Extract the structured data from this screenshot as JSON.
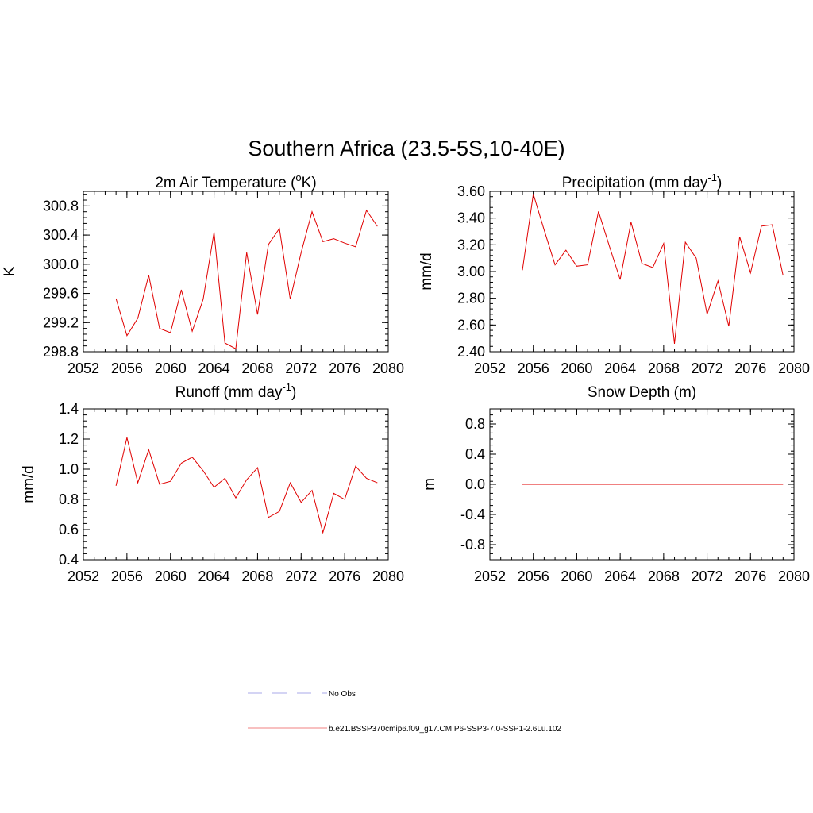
{
  "figure": {
    "title": "Southern Africa (23.5-5S,10-40E)"
  },
  "colors": {
    "model_line": "#e00000",
    "obs_line": "#a9a9e8",
    "legend_model_line": "#f08080"
  },
  "legend": {
    "entries": [
      {
        "label": "No Obs",
        "style": "dashed",
        "color": "#a9a9e8"
      },
      {
        "label": "b.e21.BSSP370cmip6.f09_g17.CMIP6-SSP3-7.0-SSP1-2.6Lu.102",
        "style": "solid",
        "color": "#f08080"
      }
    ]
  },
  "chart_data": [
    {
      "type": "line",
      "title_pre": "2m Air Temperature (",
      "title_sup": "o",
      "title_post": "K)",
      "ylabel": "K",
      "xlim": [
        2052,
        2080
      ],
      "ylim": [
        298.8,
        301.0
      ],
      "xticks": [
        2052,
        2056,
        2060,
        2064,
        2068,
        2072,
        2076,
        2080
      ],
      "xtick_labels": [
        "2052",
        "2056",
        "2060",
        "2064",
        "2068",
        "2072",
        "2076",
        "2080"
      ],
      "yticks": [
        298.8,
        299.2,
        299.6,
        300.0,
        300.4,
        300.8
      ],
      "ytick_labels": [
        "298.8",
        "299.2",
        "299.6",
        "300.0",
        "300.4",
        "300.8"
      ],
      "series": [
        {
          "x": [
            2055,
            2056,
            2057,
            2058,
            2059,
            2060,
            2061,
            2062,
            2063,
            2064,
            2065,
            2066,
            2067,
            2068,
            2069,
            2070,
            2071,
            2072,
            2073,
            2074,
            2075,
            2076,
            2077,
            2078,
            2079
          ],
          "values": [
            299.53,
            299.02,
            299.26,
            299.85,
            299.12,
            299.06,
            299.65,
            299.08,
            299.52,
            300.44,
            298.92,
            298.84,
            300.16,
            299.31,
            300.27,
            300.49,
            299.52,
            300.16,
            300.72,
            300.31,
            300.35,
            300.29,
            300.24,
            300.74,
            300.52
          ]
        }
      ]
    },
    {
      "type": "line",
      "title_pre": "Precipitation (mm day",
      "title_sup": "-1",
      "title_post": ")",
      "ylabel": "mm/d",
      "xlim": [
        2052,
        2080
      ],
      "ylim": [
        2.4,
        3.6
      ],
      "xticks": [
        2052,
        2056,
        2060,
        2064,
        2068,
        2072,
        2076,
        2080
      ],
      "xtick_labels": [
        "2052",
        "2056",
        "2060",
        "2064",
        "2068",
        "2072",
        "2076",
        "2080"
      ],
      "yticks": [
        2.4,
        2.6,
        2.8,
        3.0,
        3.2,
        3.4,
        3.6
      ],
      "ytick_labels": [
        "2.40",
        "2.60",
        "2.80",
        "3.00",
        "3.20",
        "3.40",
        "3.60"
      ],
      "series": [
        {
          "x": [
            2055,
            2056,
            2057,
            2058,
            2059,
            2060,
            2061,
            2062,
            2063,
            2064,
            2065,
            2066,
            2067,
            2068,
            2069,
            2070,
            2071,
            2072,
            2073,
            2074,
            2075,
            2076,
            2077,
            2078,
            2079
          ],
          "values": [
            3.01,
            3.58,
            3.31,
            3.05,
            3.16,
            3.04,
            3.05,
            3.45,
            3.19,
            2.94,
            3.37,
            3.06,
            3.03,
            3.21,
            2.46,
            3.22,
            3.1,
            2.68,
            2.93,
            2.59,
            3.26,
            2.99,
            3.34,
            3.35,
            2.97
          ]
        }
      ]
    },
    {
      "type": "line",
      "title_pre": "Runoff (mm day",
      "title_sup": "-1",
      "title_post": ")",
      "ylabel": "mm/d",
      "xlim": [
        2052,
        2080
      ],
      "ylim": [
        0.4,
        1.4
      ],
      "xticks": [
        2052,
        2056,
        2060,
        2064,
        2068,
        2072,
        2076,
        2080
      ],
      "xtick_labels": [
        "2052",
        "2056",
        "2060",
        "2064",
        "2068",
        "2072",
        "2076",
        "2080"
      ],
      "yticks": [
        0.4,
        0.6,
        0.8,
        1.0,
        1.2,
        1.4
      ],
      "ytick_labels": [
        "0.4",
        "0.6",
        "0.8",
        "1.0",
        "1.2",
        "1.4"
      ],
      "series": [
        {
          "x": [
            2055,
            2056,
            2057,
            2058,
            2059,
            2060,
            2061,
            2062,
            2063,
            2064,
            2065,
            2066,
            2067,
            2068,
            2069,
            2070,
            2071,
            2072,
            2073,
            2074,
            2075,
            2076,
            2077,
            2078,
            2079
          ],
          "values": [
            0.89,
            1.21,
            0.91,
            1.13,
            0.9,
            0.92,
            1.04,
            1.08,
            0.99,
            0.88,
            0.94,
            0.81,
            0.93,
            1.01,
            0.68,
            0.72,
            0.91,
            0.78,
            0.86,
            0.58,
            0.84,
            0.8,
            1.02,
            0.94,
            0.91
          ]
        }
      ]
    },
    {
      "type": "line",
      "title_pre": "Snow Depth (m)",
      "title_sup": "",
      "title_post": "",
      "ylabel": "m",
      "xlim": [
        2052,
        2080
      ],
      "ylim": [
        -1.0,
        1.0
      ],
      "xticks": [
        2052,
        2056,
        2060,
        2064,
        2068,
        2072,
        2076,
        2080
      ],
      "xtick_labels": [
        "2052",
        "2056",
        "2060",
        "2064",
        "2068",
        "2072",
        "2076",
        "2080"
      ],
      "yticks": [
        -0.8,
        -0.4,
        0.0,
        0.4,
        0.8
      ],
      "ytick_labels": [
        "-0.8",
        "-0.4",
        "0.0",
        "0.4",
        "0.8"
      ],
      "series": [
        {
          "x": [
            2055,
            2056,
            2057,
            2058,
            2059,
            2060,
            2061,
            2062,
            2063,
            2064,
            2065,
            2066,
            2067,
            2068,
            2069,
            2070,
            2071,
            2072,
            2073,
            2074,
            2075,
            2076,
            2077,
            2078,
            2079
          ],
          "values": [
            0,
            0,
            0,
            0,
            0,
            0,
            0,
            0,
            0,
            0,
            0,
            0,
            0,
            0,
            0,
            0,
            0,
            0,
            0,
            0,
            0,
            0,
            0,
            0,
            0
          ]
        }
      ]
    }
  ]
}
